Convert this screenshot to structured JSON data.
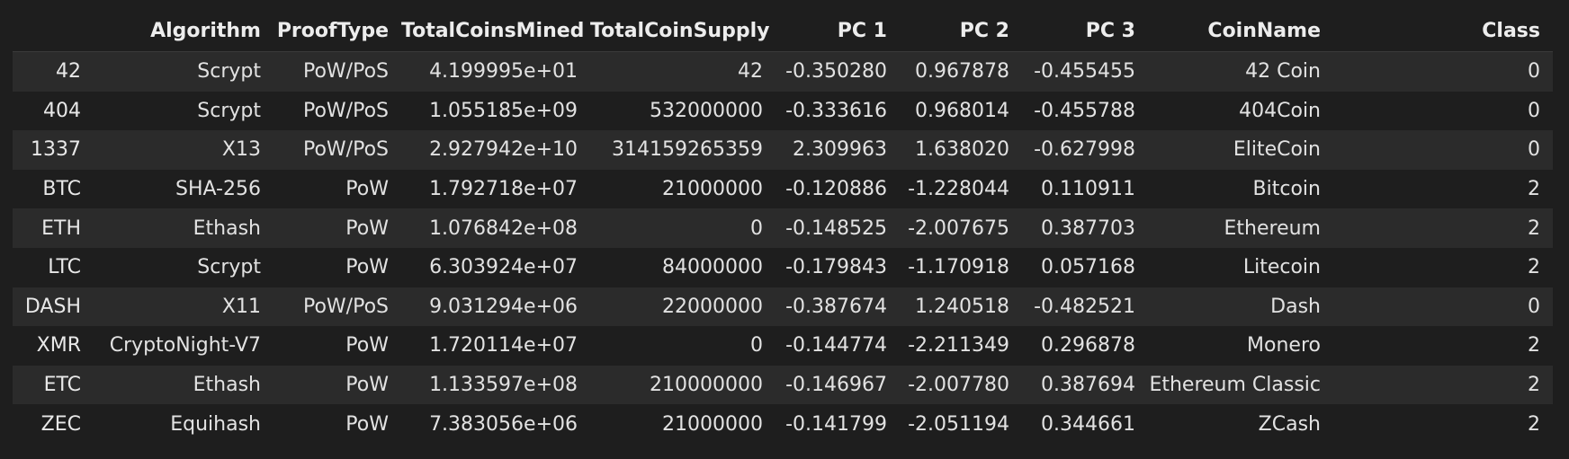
{
  "table": {
    "columns": [
      "",
      "Algorithm",
      "ProofType",
      "TotalCoinsMined",
      "TotalCoinSupply",
      "PC 1",
      "PC 2",
      "PC 3",
      "CoinName",
      "Class"
    ],
    "rows": [
      [
        "42",
        "Scrypt",
        "PoW/PoS",
        "4.199995e+01",
        "42",
        "-0.350280",
        "0.967878",
        "-0.455455",
        "42 Coin",
        "0"
      ],
      [
        "404",
        "Scrypt",
        "PoW/PoS",
        "1.055185e+09",
        "532000000",
        "-0.333616",
        "0.968014",
        "-0.455788",
        "404Coin",
        "0"
      ],
      [
        "1337",
        "X13",
        "PoW/PoS",
        "2.927942e+10",
        "314159265359",
        "2.309963",
        "1.638020",
        "-0.627998",
        "EliteCoin",
        "0"
      ],
      [
        "BTC",
        "SHA-256",
        "PoW",
        "1.792718e+07",
        "21000000",
        "-0.120886",
        "-1.228044",
        "0.110911",
        "Bitcoin",
        "2"
      ],
      [
        "ETH",
        "Ethash",
        "PoW",
        "1.076842e+08",
        "0",
        "-0.148525",
        "-2.007675",
        "0.387703",
        "Ethereum",
        "2"
      ],
      [
        "LTC",
        "Scrypt",
        "PoW",
        "6.303924e+07",
        "84000000",
        "-0.179843",
        "-1.170918",
        "0.057168",
        "Litecoin",
        "2"
      ],
      [
        "DASH",
        "X11",
        "PoW/PoS",
        "9.031294e+06",
        "22000000",
        "-0.387674",
        "1.240518",
        "-0.482521",
        "Dash",
        "0"
      ],
      [
        "XMR",
        "CryptoNight-V7",
        "PoW",
        "1.720114e+07",
        "0",
        "-0.144774",
        "-2.211349",
        "0.296878",
        "Monero",
        "2"
      ],
      [
        "ETC",
        "Ethash",
        "PoW",
        "1.133597e+08",
        "210000000",
        "-0.146967",
        "-2.007780",
        "0.387694",
        "Ethereum Classic",
        "2"
      ],
      [
        "ZEC",
        "Equihash",
        "PoW",
        "7.383056e+06",
        "21000000",
        "-0.141799",
        "-2.051194",
        "0.344661",
        "ZCash",
        "2"
      ]
    ]
  }
}
